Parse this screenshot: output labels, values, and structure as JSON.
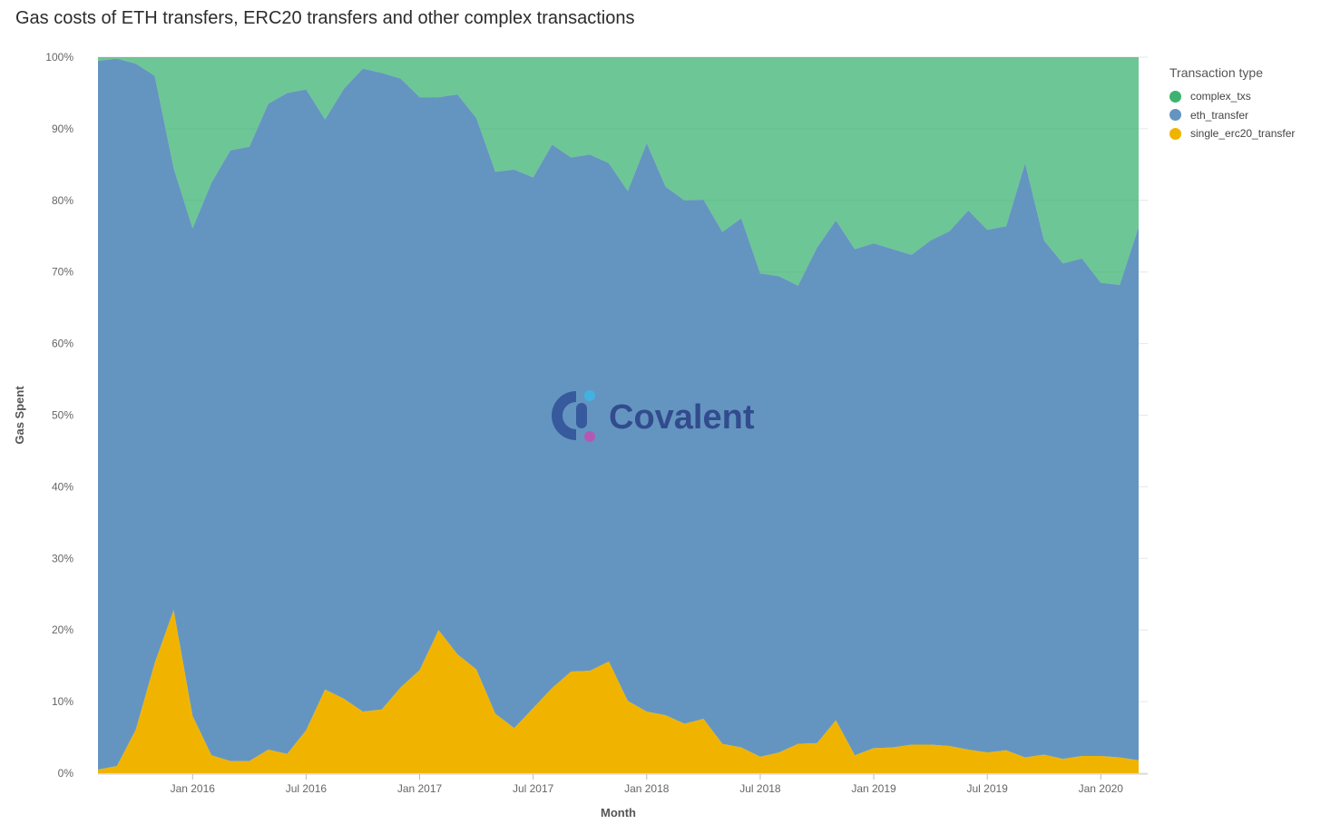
{
  "title": "Gas costs of ETH transfers, ERC20 transfers and other complex transactions",
  "watermark": "Covalent",
  "chart_data": {
    "type": "area",
    "stacked": true,
    "normalized": true,
    "title": "Gas costs of ETH transfers, ERC20 transfers and other complex transactions",
    "xlabel": "Month",
    "ylabel": "Gas Spent",
    "ylim": [
      0,
      100
    ],
    "yticks": [
      "0%",
      "10%",
      "20%",
      "30%",
      "40%",
      "50%",
      "60%",
      "70%",
      "80%",
      "90%",
      "100%"
    ],
    "x_start": "2015-08",
    "xticks": [
      {
        "label": "Jan 2016",
        "index": 5
      },
      {
        "label": "Jul 2016",
        "index": 11
      },
      {
        "label": "Jan 2017",
        "index": 17
      },
      {
        "label": "Jul 2017",
        "index": 23
      },
      {
        "label": "Jan 2018",
        "index": 29
      },
      {
        "label": "Jul 2018",
        "index": 35
      },
      {
        "label": "Jan 2019",
        "index": 41
      },
      {
        "label": "Jul 2019",
        "index": 47
      },
      {
        "label": "Jan 2020",
        "index": 53
      }
    ],
    "legend_title": "Transaction type",
    "legend_position": "top-right",
    "series": [
      {
        "name": "complex_txs",
        "color": "#3cb371",
        "values": [
          0.5,
          0.2,
          0.9,
          2.6,
          15.5,
          23.9,
          17.5,
          13.0,
          12.5,
          6.5,
          5.0,
          4.5,
          8.7,
          4.4,
          1.6,
          2.2,
          3.0,
          5.6,
          5.6,
          5.2,
          8.5,
          16.0,
          15.7,
          16.8,
          12.2,
          14.0,
          13.6,
          14.8,
          18.7,
          12.0,
          18.1,
          20.0,
          19.9,
          24.4,
          22.5,
          30.2,
          30.6,
          31.9,
          26.6,
          22.8,
          26.8,
          26.0,
          26.8,
          27.6,
          25.6,
          24.3,
          21.4,
          24.1,
          23.6,
          14.8,
          25.6,
          28.8,
          28.1,
          31.5,
          31.8,
          23.7
        ]
      },
      {
        "name": "eth_transfer",
        "color": "#6495c0",
        "values": [
          99.0,
          98.8,
          93.0,
          82.0,
          61.7,
          68.1,
          80.0,
          85.3,
          85.8,
          90.2,
          92.3,
          89.5,
          79.6,
          85.2,
          89.8,
          88.9,
          85.0,
          80.0,
          74.4,
          78.2,
          77.0,
          75.7,
          78.0,
          74.1,
          75.9,
          71.8,
          72.1,
          69.6,
          71.2,
          79.4,
          73.8,
          73.1,
          72.5,
          71.5,
          73.9,
          67.5,
          66.5,
          64.0,
          69.2,
          69.8,
          70.7,
          70.5,
          69.6,
          68.4,
          70.4,
          71.9,
          75.3,
          73.0,
          73.2,
          83.0,
          71.8,
          69.2,
          69.5,
          66.1,
          66.0,
          74.5
        ]
      },
      {
        "name": "single_erc20_transfer",
        "color": "#f0b400",
        "values": [
          0.5,
          1.0,
          6.1,
          15.4,
          22.8,
          8.0,
          2.5,
          1.7,
          1.7,
          3.3,
          2.7,
          6.0,
          11.7,
          10.4,
          8.6,
          8.9,
          12.0,
          14.4,
          20.0,
          16.6,
          14.5,
          8.3,
          6.3,
          9.1,
          11.9,
          14.2,
          14.3,
          15.6,
          10.1,
          8.6,
          8.1,
          6.9,
          7.6,
          4.1,
          3.6,
          2.3,
          2.9,
          4.1,
          4.2,
          7.4,
          2.5,
          3.5,
          3.6,
          4.0,
          4.0,
          3.8,
          3.3,
          2.9,
          3.2,
          2.2,
          2.6,
          2.0,
          2.4,
          2.4,
          2.2,
          1.8
        ]
      }
    ]
  }
}
